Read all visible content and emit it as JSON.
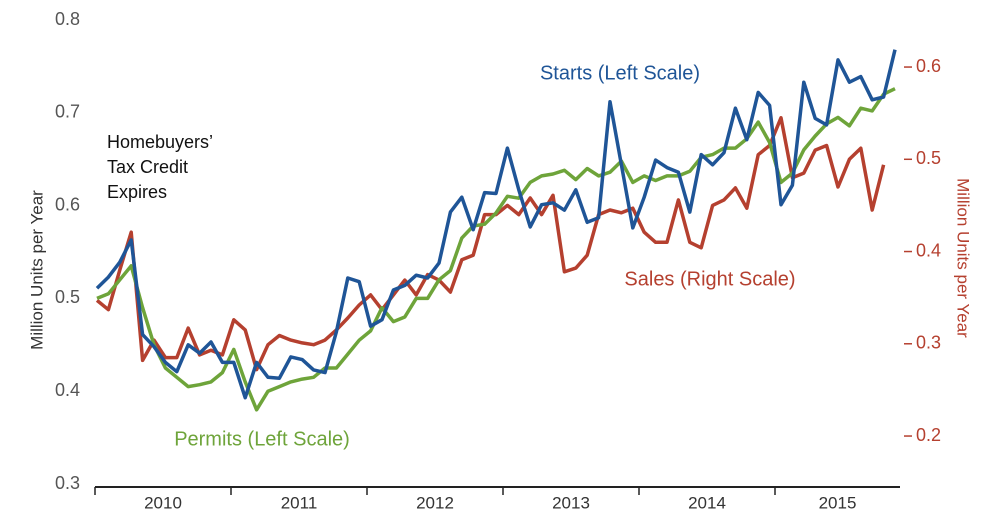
{
  "chart_data": {
    "type": "line",
    "ylabel": "Million Units  per Year",
    "y2label": "Million Units  per Year",
    "annotation": [
      "Homebuyers’",
      "Tax Credit",
      "Expires"
    ],
    "year_labels": [
      "2010",
      "2011",
      "2012",
      "2013",
      "2014",
      "2015"
    ],
    "categories": [
      null,
      null,
      null,
      null,
      null,
      null,
      null,
      null,
      null,
      null,
      null,
      null,
      null,
      null,
      null,
      null,
      null,
      null,
      null,
      null,
      null,
      null,
      null,
      null,
      null,
      null,
      null,
      null,
      null,
      null,
      null,
      null,
      null,
      null,
      null,
      null,
      null,
      null,
      null,
      null,
      null,
      null,
      null,
      null,
      null,
      null,
      null,
      null,
      null,
      null,
      null,
      null,
      null,
      null,
      null,
      null,
      null,
      null,
      null,
      null,
      null,
      null,
      null,
      null,
      null,
      null,
      null,
      null,
      null,
      null,
      null
    ],
    "ylim": [
      0.3,
      0.8
    ],
    "yticks": [
      0.3,
      0.4,
      0.5,
      0.6,
      0.7,
      0.8
    ],
    "y2lim": [
      0.148,
      0.651
    ],
    "y2ticks": [
      0.2,
      0.3,
      0.4,
      0.5,
      0.6
    ],
    "series": [
      {
        "name": "Starts (Left Scale)",
        "color": "#1f5597",
        "axis": "y",
        "values": [
          0.511,
          0.523,
          0.539,
          0.563,
          0.461,
          0.448,
          0.431,
          0.421,
          0.45,
          0.441,
          0.453,
          0.431,
          0.431,
          0.393,
          0.431,
          0.415,
          0.414,
          0.437,
          0.434,
          0.423,
          0.42,
          0.464,
          0.522,
          0.518,
          0.47,
          0.477,
          0.509,
          0.514,
          0.525,
          0.522,
          0.538,
          0.593,
          0.609,
          0.574,
          0.614,
          0.613,
          0.662,
          0.617,
          0.577,
          0.601,
          0.603,
          0.595,
          0.617,
          0.582,
          0.587,
          0.712,
          0.644,
          0.576,
          0.609,
          0.649,
          0.641,
          0.636,
          0.593,
          0.655,
          0.644,
          0.657,
          0.705,
          0.671,
          0.722,
          0.708,
          0.601,
          0.622,
          0.733,
          0.694,
          0.687,
          0.757,
          0.733,
          0.739,
          0.714,
          0.717,
          0.768
        ]
      },
      {
        "name": "Permits (Left Scale)",
        "color": "#6ea43a",
        "axis": "y",
        "values": [
          0.5,
          0.505,
          0.52,
          0.535,
          0.49,
          0.45,
          0.425,
          0.415,
          0.405,
          0.407,
          0.41,
          0.42,
          0.445,
          0.41,
          0.38,
          0.4,
          0.405,
          0.41,
          0.413,
          0.415,
          0.425,
          0.425,
          0.44,
          0.455,
          0.465,
          0.49,
          0.475,
          0.48,
          0.5,
          0.5,
          0.52,
          0.53,
          0.565,
          0.578,
          0.58,
          0.592,
          0.61,
          0.608,
          0.625,
          0.632,
          0.634,
          0.638,
          0.628,
          0.64,
          0.632,
          0.636,
          0.648,
          0.625,
          0.632,
          0.627,
          0.632,
          0.632,
          0.637,
          0.652,
          0.655,
          0.662,
          0.662,
          0.672,
          0.69,
          0.668,
          0.625,
          0.635,
          0.66,
          0.675,
          0.688,
          0.695,
          0.686,
          0.705,
          0.702,
          0.72,
          0.726
        ]
      },
      {
        "name": "Sales (Right Scale)",
        "color": "#b5402f",
        "axis": "y2",
        "values": [
          0.347,
          0.337,
          0.38,
          0.421,
          0.282,
          0.304,
          0.285,
          0.285,
          0.317,
          0.288,
          0.293,
          0.288,
          0.326,
          0.315,
          0.272,
          0.299,
          0.309,
          0.304,
          0.301,
          0.299,
          0.304,
          0.315,
          0.328,
          0.342,
          0.353,
          0.337,
          0.353,
          0.369,
          0.353,
          0.375,
          0.369,
          0.356,
          0.391,
          0.396,
          0.44,
          0.44,
          0.45,
          0.44,
          0.458,
          0.44,
          0.461,
          0.378,
          0.382,
          0.396,
          0.44,
          0.445,
          0.442,
          0.447,
          0.421,
          0.41,
          0.41,
          0.456,
          0.41,
          0.404,
          0.45,
          0.456,
          0.469,
          0.447,
          0.505,
          0.515,
          0.545,
          0.48,
          0.485,
          0.51,
          0.515,
          0.47,
          0.5,
          0.512,
          0.445,
          0.494,
          null
        ]
      }
    ]
  }
}
